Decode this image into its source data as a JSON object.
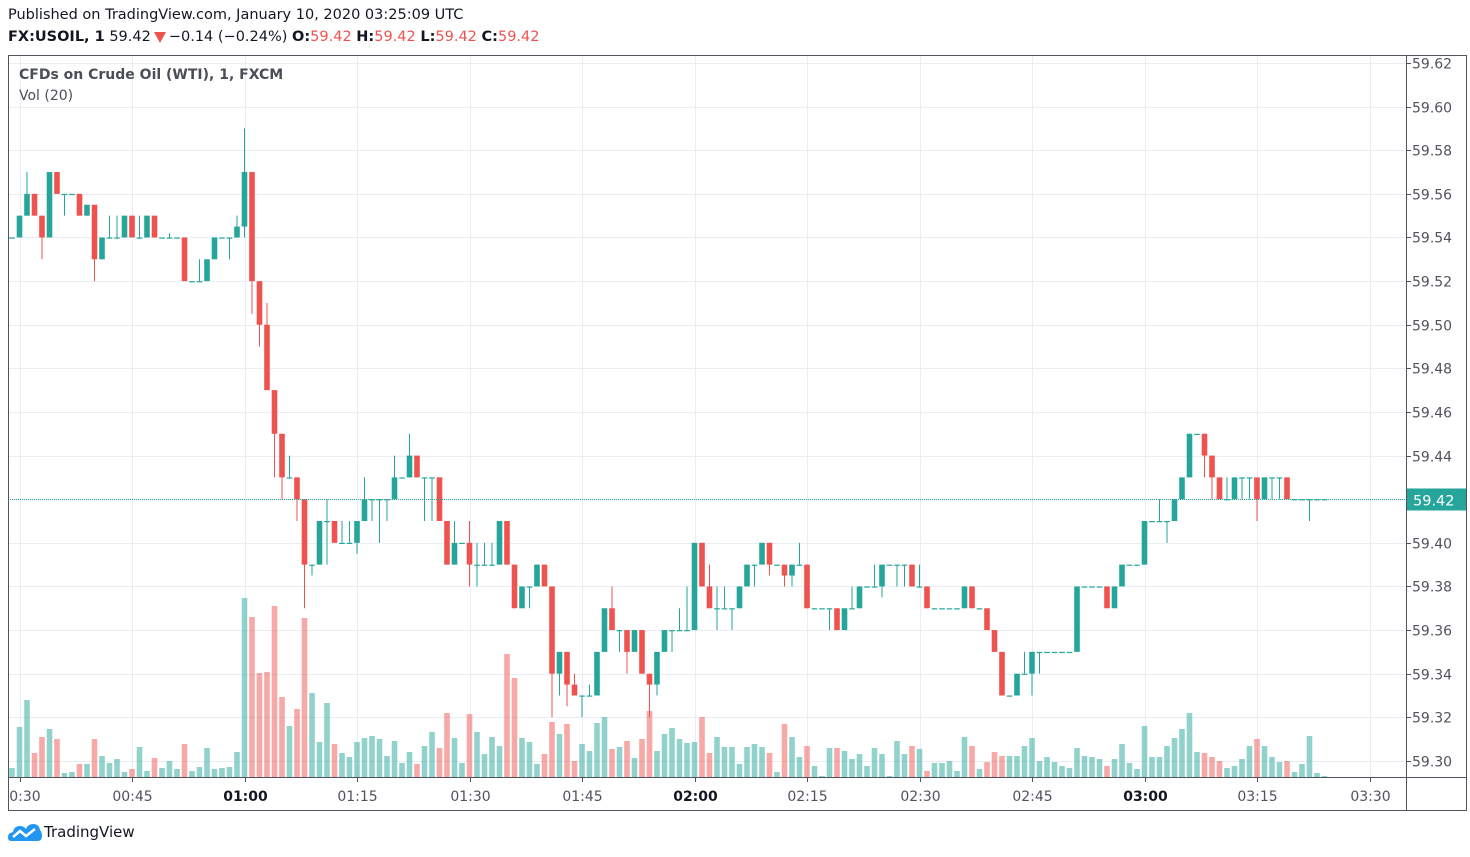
{
  "header": {
    "published": "Published on TradingView.com, January 10, 2020 03:25:09 UTC",
    "symbol": "FX:USOIL, 1",
    "last_price": "59.42",
    "change": "−0.14 (−0.24%)",
    "direction_icon": "triangle-down-icon",
    "o_label": "O:",
    "o_value": "59.42",
    "h_label": "H:",
    "h_value": "59.42",
    "l_label": "L:",
    "l_value": "59.42",
    "c_label": "C:",
    "c_value": "59.42"
  },
  "legend": {
    "title": "CFDs on Crude Oil (WTI), 1, FXCM",
    "indicator": "Vol (20)"
  },
  "footer": {
    "brand": "TradingView",
    "logo_icon": "tradingview-cloud-logo-icon"
  },
  "colors": {
    "up": "#26a69a",
    "down": "#ef5350",
    "grid": "#e8eef4",
    "price_line": "#26a69a"
  },
  "chart_data": {
    "type": "candlestick",
    "interval_minutes": 1,
    "start_time": "00:29",
    "grid": true,
    "ylim": [
      59.295,
      59.625
    ],
    "y_ticks": [
      "59.62",
      "59.60",
      "59.58",
      "59.56",
      "59.54",
      "59.52",
      "59.50",
      "59.48",
      "59.46",
      "59.44",
      "59.42",
      "59.40",
      "59.38",
      "59.36",
      "59.34",
      "59.32",
      "59.30"
    ],
    "x_ticks": [
      {
        "label": "00:30",
        "bold": false
      },
      {
        "label": "00:45",
        "bold": false
      },
      {
        "label": "01:00",
        "bold": true
      },
      {
        "label": "01:15",
        "bold": false
      },
      {
        "label": "01:30",
        "bold": false
      },
      {
        "label": "01:45",
        "bold": false
      },
      {
        "label": "02:00",
        "bold": true
      },
      {
        "label": "02:15",
        "bold": false
      },
      {
        "label": "02:30",
        "bold": false
      },
      {
        "label": "02:45",
        "bold": false
      },
      {
        "label": "03:00",
        "bold": true
      },
      {
        "label": "03:15",
        "bold": false
      },
      {
        "label": "03:30",
        "bold": false
      }
    ],
    "current_price": "59.42",
    "ohlc_fields": [
      "open",
      "high",
      "low",
      "close"
    ],
    "ohlc": [
      [
        59.54,
        59.54,
        59.54,
        59.54
      ],
      [
        59.54,
        59.55,
        59.54,
        59.55
      ],
      [
        59.55,
        59.57,
        59.55,
        59.56
      ],
      [
        59.56,
        59.56,
        59.55,
        59.55
      ],
      [
        59.55,
        59.55,
        59.53,
        59.54
      ],
      [
        59.54,
        59.57,
        59.54,
        59.57
      ],
      [
        59.57,
        59.57,
        59.56,
        59.56
      ],
      [
        59.56,
        59.56,
        59.55,
        59.56
      ],
      [
        59.56,
        59.56,
        59.56,
        59.56
      ],
      [
        59.56,
        59.56,
        59.55,
        59.55
      ],
      [
        59.55,
        59.555,
        59.55,
        59.555
      ],
      [
        59.555,
        59.555,
        59.52,
        59.53
      ],
      [
        59.53,
        59.54,
        59.53,
        59.54
      ],
      [
        59.54,
        59.55,
        59.54,
        59.54
      ],
      [
        59.54,
        59.55,
        59.54,
        59.54
      ],
      [
        59.54,
        59.55,
        59.54,
        59.55
      ],
      [
        59.55,
        59.55,
        59.54,
        59.54
      ],
      [
        59.54,
        59.55,
        59.54,
        59.54
      ],
      [
        59.54,
        59.55,
        59.54,
        59.55
      ],
      [
        59.55,
        59.55,
        59.54,
        59.54
      ],
      [
        59.54,
        59.54,
        59.54,
        59.54
      ],
      [
        59.54,
        59.542,
        59.54,
        59.54
      ],
      [
        59.54,
        59.54,
        59.54,
        59.54
      ],
      [
        59.54,
        59.54,
        59.52,
        59.52
      ],
      [
        59.52,
        59.52,
        59.52,
        59.52
      ],
      [
        59.52,
        59.53,
        59.52,
        59.52
      ],
      [
        59.52,
        59.53,
        59.52,
        59.53
      ],
      [
        59.53,
        59.54,
        59.53,
        59.54
      ],
      [
        59.54,
        59.54,
        59.54,
        59.54
      ],
      [
        59.54,
        59.54,
        59.53,
        59.54
      ],
      [
        59.54,
        59.55,
        59.54,
        59.545
      ],
      [
        59.545,
        59.59,
        59.54,
        59.57
      ],
      [
        59.57,
        59.57,
        59.505,
        59.52
      ],
      [
        59.52,
        59.52,
        59.49,
        59.5
      ],
      [
        59.5,
        59.51,
        59.47,
        59.47
      ],
      [
        59.47,
        59.47,
        59.43,
        59.45
      ],
      [
        59.45,
        59.45,
        59.42,
        59.43
      ],
      [
        59.43,
        59.44,
        59.43,
        59.43
      ],
      [
        59.43,
        59.43,
        59.41,
        59.42
      ],
      [
        59.42,
        59.42,
        59.37,
        59.39
      ],
      [
        59.39,
        59.39,
        59.385,
        59.39
      ],
      [
        59.39,
        59.41,
        59.39,
        59.41
      ],
      [
        59.41,
        59.42,
        59.39,
        59.41
      ],
      [
        59.41,
        59.41,
        59.4,
        59.4
      ],
      [
        59.4,
        59.41,
        59.4,
        59.4
      ],
      [
        59.4,
        59.41,
        59.4,
        59.4
      ],
      [
        59.4,
        59.41,
        59.395,
        59.41
      ],
      [
        59.41,
        59.43,
        59.41,
        59.42
      ],
      [
        59.42,
        59.42,
        59.41,
        59.42
      ],
      [
        59.42,
        59.42,
        59.4,
        59.42
      ],
      [
        59.42,
        59.42,
        59.41,
        59.42
      ],
      [
        59.42,
        59.44,
        59.42,
        59.43
      ],
      [
        59.43,
        59.43,
        59.43,
        59.43
      ],
      [
        59.43,
        59.45,
        59.43,
        59.44
      ],
      [
        59.44,
        59.44,
        59.43,
        59.43
      ],
      [
        59.43,
        59.43,
        59.41,
        59.43
      ],
      [
        59.43,
        59.43,
        59.41,
        59.43
      ],
      [
        59.43,
        59.43,
        59.41,
        59.41
      ],
      [
        59.41,
        59.41,
        59.39,
        59.39
      ],
      [
        59.39,
        59.41,
        59.39,
        59.4
      ],
      [
        59.4,
        59.4,
        59.4,
        59.4
      ],
      [
        59.4,
        59.41,
        59.38,
        59.39
      ],
      [
        59.39,
        59.4,
        59.38,
        59.39
      ],
      [
        59.39,
        59.4,
        59.39,
        59.39
      ],
      [
        59.39,
        59.4,
        59.39,
        59.39
      ],
      [
        59.39,
        59.41,
        59.39,
        59.41
      ],
      [
        59.41,
        59.41,
        59.39,
        59.39
      ],
      [
        59.39,
        59.39,
        59.37,
        59.37
      ],
      [
        59.37,
        59.38,
        59.37,
        59.38
      ],
      [
        59.38,
        59.38,
        59.37,
        59.38
      ],
      [
        59.38,
        59.39,
        59.38,
        59.39
      ],
      [
        59.39,
        59.39,
        59.38,
        59.38
      ],
      [
        59.38,
        59.38,
        59.32,
        59.34
      ],
      [
        59.34,
        59.35,
        59.33,
        59.35
      ],
      [
        59.35,
        59.35,
        59.325,
        59.335
      ],
      [
        59.335,
        59.34,
        59.33,
        59.33
      ],
      [
        59.33,
        59.33,
        59.32,
        59.33
      ],
      [
        59.33,
        59.335,
        59.33,
        59.33
      ],
      [
        59.33,
        59.35,
        59.33,
        59.35
      ],
      [
        59.35,
        59.37,
        59.35,
        59.37
      ],
      [
        59.37,
        59.38,
        59.36,
        59.36
      ],
      [
        59.36,
        59.36,
        59.35,
        59.36
      ],
      [
        59.36,
        59.36,
        59.34,
        59.35
      ],
      [
        59.35,
        59.36,
        59.35,
        59.36
      ],
      [
        59.36,
        59.36,
        59.34,
        59.34
      ],
      [
        59.34,
        59.34,
        59.32,
        59.335
      ],
      [
        59.335,
        59.35,
        59.33,
        59.35
      ],
      [
        59.35,
        59.36,
        59.35,
        59.36
      ],
      [
        59.36,
        59.36,
        59.35,
        59.36
      ],
      [
        59.36,
        59.37,
        59.36,
        59.36
      ],
      [
        59.36,
        59.38,
        59.36,
        59.36
      ],
      [
        59.36,
        59.4,
        59.36,
        59.4
      ],
      [
        59.4,
        59.4,
        59.38,
        59.38
      ],
      [
        59.38,
        59.39,
        59.37,
        59.37
      ],
      [
        59.37,
        59.38,
        59.36,
        59.37
      ],
      [
        59.37,
        59.38,
        59.37,
        59.37
      ],
      [
        59.37,
        59.37,
        59.36,
        59.37
      ],
      [
        59.37,
        59.38,
        59.37,
        59.38
      ],
      [
        59.38,
        59.39,
        59.38,
        59.39
      ],
      [
        59.39,
        59.39,
        59.38,
        59.39
      ],
      [
        59.39,
        59.4,
        59.39,
        59.4
      ],
      [
        59.4,
        59.4,
        59.385,
        59.39
      ],
      [
        59.39,
        59.39,
        59.39,
        59.39
      ],
      [
        59.39,
        59.39,
        59.38,
        59.385
      ],
      [
        59.385,
        59.39,
        59.38,
        59.39
      ],
      [
        59.39,
        59.4,
        59.39,
        59.39
      ],
      [
        59.39,
        59.39,
        59.37,
        59.37
      ],
      [
        59.37,
        59.37,
        59.37,
        59.37
      ],
      [
        59.37,
        59.37,
        59.37,
        59.37
      ],
      [
        59.37,
        59.37,
        59.36,
        59.37
      ],
      [
        59.37,
        59.37,
        59.36,
        59.36
      ],
      [
        59.36,
        59.37,
        59.36,
        59.37
      ],
      [
        59.37,
        59.38,
        59.37,
        59.37
      ],
      [
        59.37,
        59.38,
        59.37,
        59.38
      ],
      [
        59.38,
        59.38,
        59.38,
        59.38
      ],
      [
        59.38,
        59.39,
        59.38,
        59.38
      ],
      [
        59.38,
        59.39,
        59.375,
        59.39
      ],
      [
        59.39,
        59.39,
        59.39,
        59.39
      ],
      [
        59.39,
        59.39,
        59.38,
        59.39
      ],
      [
        59.39,
        59.39,
        59.38,
        59.39
      ],
      [
        59.39,
        59.39,
        59.38,
        59.38
      ],
      [
        59.38,
        59.39,
        59.38,
        59.38
      ],
      [
        59.38,
        59.38,
        59.37,
        59.37
      ],
      [
        59.37,
        59.37,
        59.37,
        59.37
      ],
      [
        59.37,
        59.37,
        59.37,
        59.37
      ],
      [
        59.37,
        59.37,
        59.37,
        59.37
      ],
      [
        59.37,
        59.37,
        59.37,
        59.37
      ],
      [
        59.37,
        59.38,
        59.37,
        59.38
      ],
      [
        59.38,
        59.38,
        59.37,
        59.37
      ],
      [
        59.37,
        59.37,
        59.37,
        59.37
      ],
      [
        59.37,
        59.37,
        59.36,
        59.36
      ],
      [
        59.36,
        59.36,
        59.35,
        59.35
      ],
      [
        59.35,
        59.35,
        59.33,
        59.33
      ],
      [
        59.33,
        59.33,
        59.33,
        59.33
      ],
      [
        59.33,
        59.34,
        59.33,
        59.34
      ],
      [
        59.34,
        59.35,
        59.34,
        59.34
      ],
      [
        59.34,
        59.35,
        59.33,
        59.35
      ],
      [
        59.35,
        59.35,
        59.34,
        59.35
      ],
      [
        59.35,
        59.35,
        59.35,
        59.35
      ],
      [
        59.35,
        59.35,
        59.35,
        59.35
      ],
      [
        59.35,
        59.35,
        59.35,
        59.35
      ],
      [
        59.35,
        59.35,
        59.35,
        59.35
      ],
      [
        59.35,
        59.38,
        59.35,
        59.38
      ],
      [
        59.38,
        59.38,
        59.38,
        59.38
      ],
      [
        59.38,
        59.38,
        59.38,
        59.38
      ],
      [
        59.38,
        59.38,
        59.38,
        59.38
      ],
      [
        59.38,
        59.38,
        59.37,
        59.37
      ],
      [
        59.37,
        59.38,
        59.37,
        59.38
      ],
      [
        59.38,
        59.39,
        59.38,
        59.39
      ],
      [
        59.39,
        59.39,
        59.39,
        59.39
      ],
      [
        59.39,
        59.39,
        59.39,
        59.39
      ],
      [
        59.39,
        59.41,
        59.39,
        59.41
      ],
      [
        59.41,
        59.41,
        59.41,
        59.41
      ],
      [
        59.41,
        59.42,
        59.41,
        59.41
      ],
      [
        59.41,
        59.41,
        59.4,
        59.41
      ],
      [
        59.41,
        59.42,
        59.41,
        59.42
      ],
      [
        59.42,
        59.43,
        59.42,
        59.43
      ],
      [
        59.43,
        59.45,
        59.43,
        59.45
      ],
      [
        59.45,
        59.45,
        59.45,
        59.45
      ],
      [
        59.45,
        59.45,
        59.43,
        59.44
      ],
      [
        59.44,
        59.44,
        59.42,
        59.43
      ],
      [
        59.43,
        59.43,
        59.42,
        59.42
      ],
      [
        59.42,
        59.43,
        59.42,
        59.42
      ],
      [
        59.42,
        59.43,
        59.42,
        59.43
      ],
      [
        59.43,
        59.43,
        59.42,
        59.43
      ],
      [
        59.43,
        59.43,
        59.42,
        59.43
      ],
      [
        59.43,
        59.43,
        59.41,
        59.42
      ],
      [
        59.42,
        59.43,
        59.42,
        59.43
      ],
      [
        59.43,
        59.43,
        59.42,
        59.43
      ],
      [
        59.43,
        59.43,
        59.42,
        59.43
      ],
      [
        59.43,
        59.43,
        59.42,
        59.42
      ],
      [
        59.42,
        59.42,
        59.42,
        59.42
      ],
      [
        59.42,
        59.42,
        59.42,
        59.42
      ],
      [
        59.42,
        59.42,
        59.41,
        59.42
      ],
      [
        59.42,
        59.42,
        59.42,
        59.42
      ],
      [
        59.42,
        59.42,
        59.42,
        59.42
      ]
    ],
    "volume_relative": [
      9,
      50,
      77,
      24,
      40,
      48,
      38,
      4,
      5,
      13,
      13,
      38,
      21,
      14,
      18,
      5,
      8,
      30,
      6,
      19,
      9,
      16,
      8,
      33,
      6,
      10,
      29,
      8,
      9,
      10,
      25,
      179,
      160,
      104,
      105,
      171,
      80,
      51,
      68,
      159,
      84,
      35,
      74,
      33,
      24,
      20,
      35,
      39,
      41,
      38,
      21,
      36,
      14,
      25,
      13,
      31,
      45,
      29,
      64,
      39,
      14,
      63,
      45,
      23,
      40,
      31,
      123,
      99,
      39,
      35,
      13,
      23,
      55,
      43,
      53,
      16,
      33,
      26,
      54,
      60,
      28,
      30,
      36,
      19,
      38,
      66,
      26,
      43,
      49,
      38,
      34,
      35,
      60,
      24,
      40,
      30,
      30,
      13,
      30,
      33,
      30,
      24,
      5,
      53,
      40,
      20,
      31,
      11,
      1,
      29,
      29,
      26,
      18,
      23,
      11,
      29,
      23,
      1,
      36,
      23,
      31,
      28,
      6,
      14,
      14,
      16,
      6,
      40,
      31,
      8,
      15,
      25,
      21,
      21,
      21,
      31,
      39,
      16,
      20,
      15,
      11,
      9,
      29,
      21,
      20,
      18,
      11,
      18,
      33,
      14,
      8,
      51,
      20,
      20,
      31,
      39,
      48,
      64,
      25,
      24,
      20,
      16,
      9,
      11,
      18,
      31,
      38,
      31,
      20,
      15,
      16,
      5,
      13,
      41,
      4,
      1
    ]
  }
}
